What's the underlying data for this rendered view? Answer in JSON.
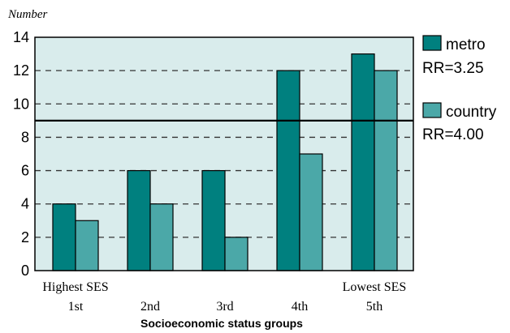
{
  "chart_data": {
    "type": "bar",
    "ylabel": "Number",
    "xlabel": "Socioeconomic status groups",
    "ylim": [
      0,
      14
    ],
    "yticks": [
      0,
      2,
      4,
      6,
      8,
      10,
      12,
      14
    ],
    "categories": [
      "1st",
      "2nd",
      "3rd",
      "4th",
      "5th"
    ],
    "category_top_labels": [
      "Highest SES",
      "",
      "",
      "",
      "Lowest SES"
    ],
    "series": [
      {
        "name": "metro",
        "values": [
          4,
          6,
          6,
          12,
          13
        ],
        "color": "#00807f"
      },
      {
        "name": "country",
        "values": [
          3,
          4,
          2,
          7,
          12
        ],
        "color": "#4ba8a8"
      }
    ],
    "reference_line": {
      "value": 9
    },
    "legend_annotations": [
      "RR=3.25",
      "RR=4.00"
    ],
    "grid": "horizontal dashed",
    "plot_background": "#d9ecec",
    "legend_position": "right"
  }
}
